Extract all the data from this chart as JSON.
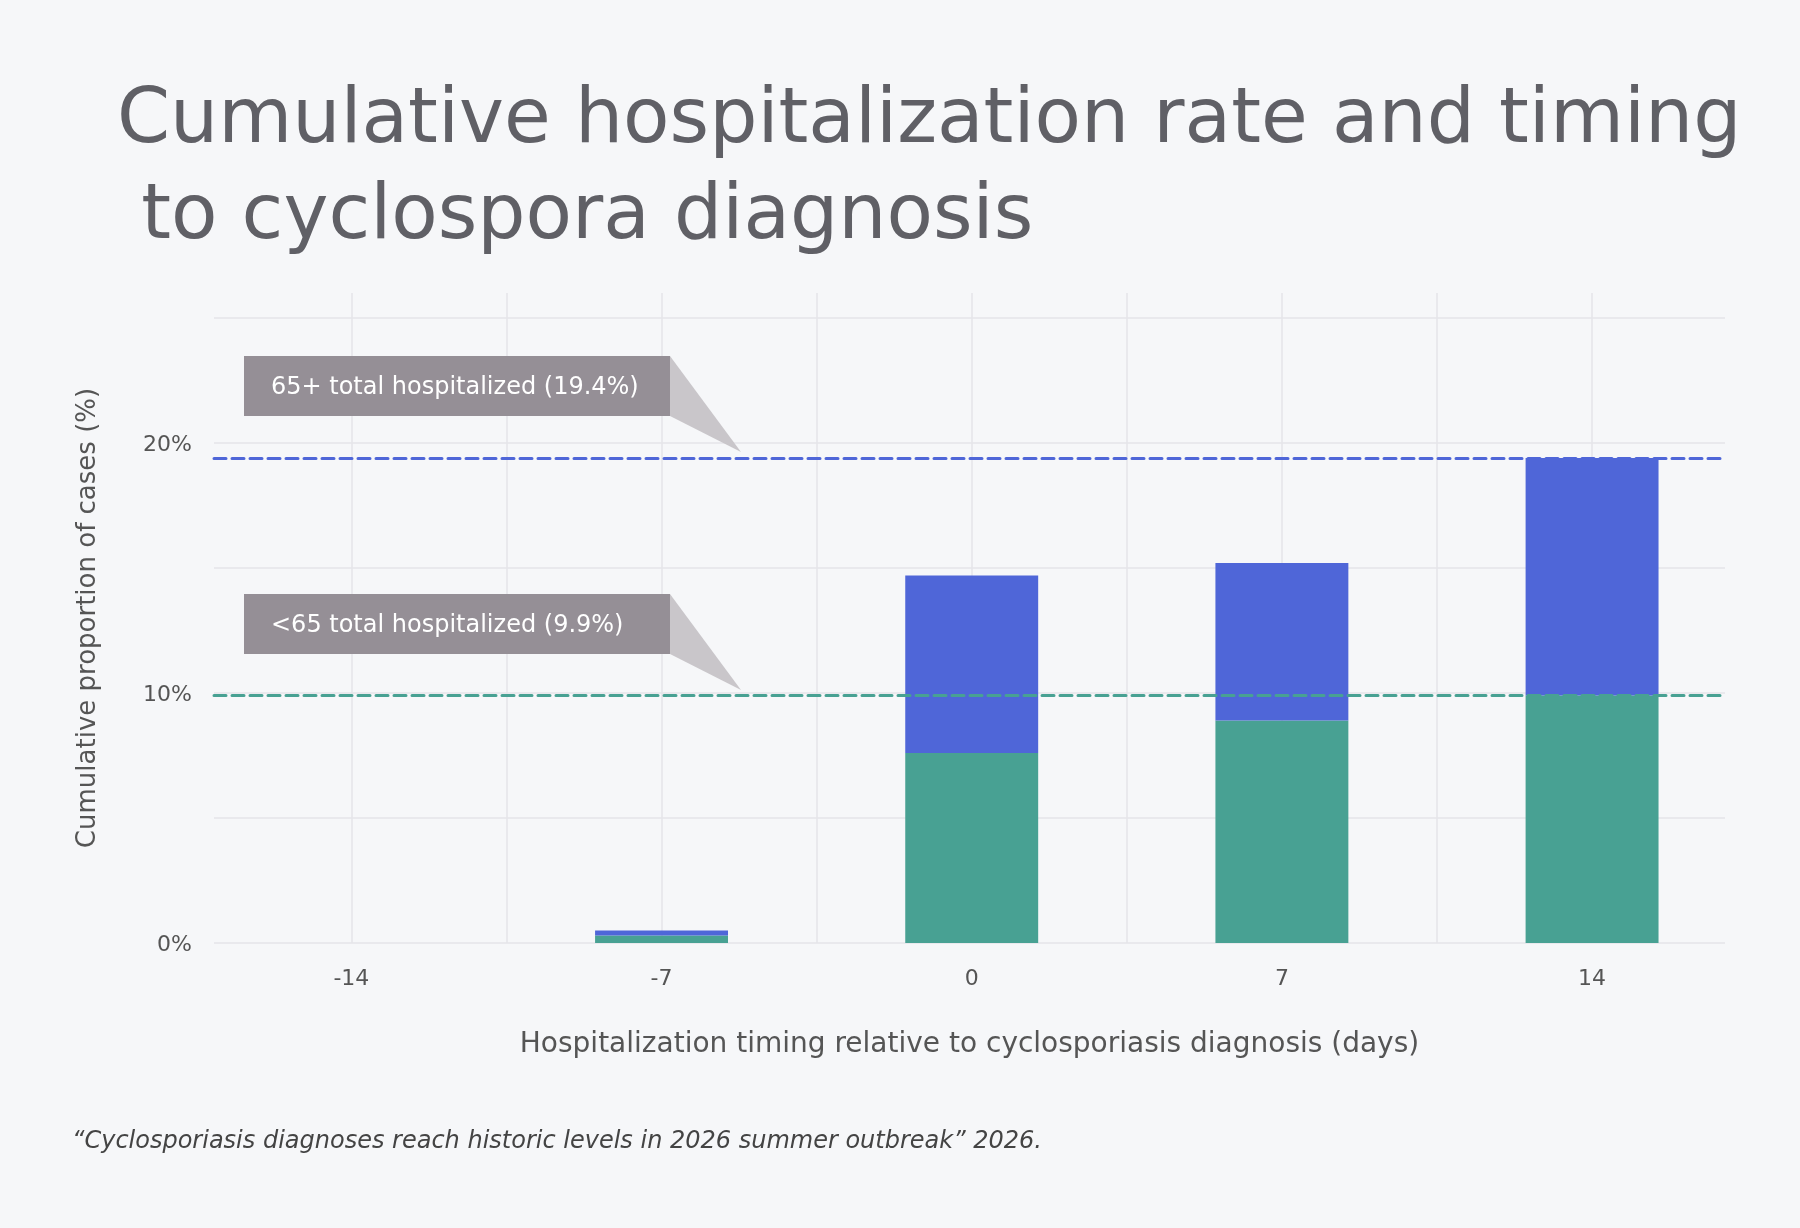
{
  "chart_data": {
    "type": "bar",
    "stacked": true,
    "title": "Cumulative hospitalization rate and timing to cyclospora diagnosis",
    "xlabel": "Hospitalization timing relative to cyclosporiasis diagnosis (days)",
    "ylabel": "Cumulative proportion of cases (%)",
    "annotations": [
      "“Cyclosporiasis diagnoses reach historic levels in 2026 summer outbreak” 2026."
    ],
    "x": [
      -14,
      -7,
      0,
      7,
      14
    ],
    "series": [
      {
        "color": "#48a193",
        "values": [
          0,
          0.3,
          7.6,
          8.9,
          9.9
        ]
      },
      {
        "color": "#4f66d8",
        "values": [
          0,
          0.2,
          7.1,
          6.3,
          9.5
        ]
      }
    ],
    "xlim": [
      -17.1,
      17
    ],
    "xticks": [
      -14,
      {
        "value": -10.5,
        "label": null
      },
      -7,
      {
        "value": -3.5,
        "label": null
      },
      0,
      {
        "value": 3.5,
        "label": null
      },
      7,
      {
        "value": 10.5,
        "label": null
      },
      14
    ],
    "ylim": [
      0,
      26
    ],
    "yticks": [
      {
        "value": 0,
        "label": "0%"
      },
      {
        "value": 5,
        "label": null
      },
      {
        "value": 10,
        "label": "10%"
      },
      {
        "value": 15,
        "label": null
      },
      {
        "value": 20,
        "label": "20%"
      },
      {
        "value": 25,
        "label": null
      }
    ],
    "grid": true,
    "ref_lines": [
      {
        "axis": "y",
        "value": 19.4,
        "label": "65+ total hospitalized (19.4%)",
        "color": "#4f66d8",
        "line_style": "dashed"
      },
      {
        "axis": "y",
        "value": 9.9,
        "label": "<65 total hospitalized (9.9%)",
        "color": "#48a193",
        "line_style": "dashed"
      }
    ]
  }
}
